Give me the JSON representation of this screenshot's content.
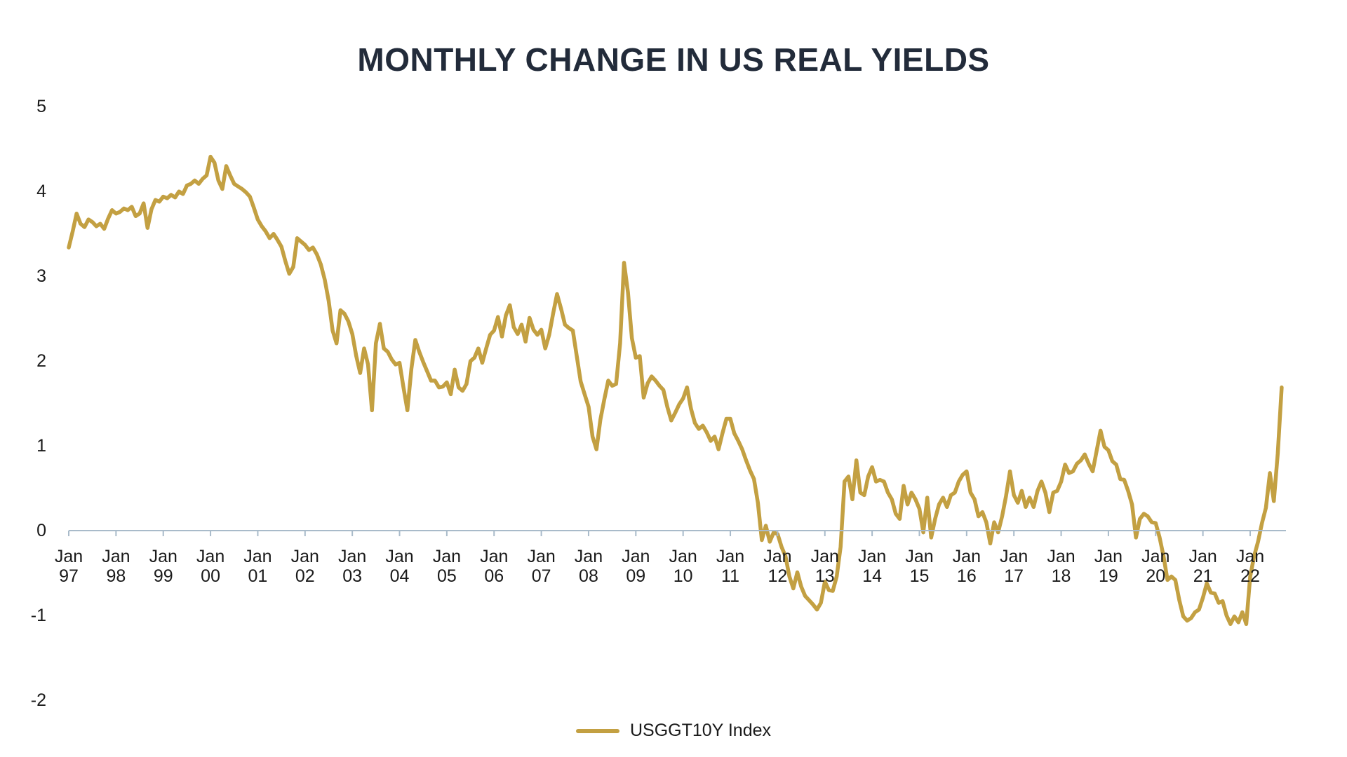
{
  "chart": {
    "title": "MONTHLY CHANGE IN US REAL YIELDS",
    "legend": {
      "series_label": "USGGT10Y Index"
    }
  },
  "colors": {
    "series": "#C3A042",
    "axis": "#A9BBCA",
    "title": "#222B3A",
    "text": "#1A1A1A"
  },
  "chart_data": {
    "type": "line",
    "title": "MONTHLY CHANGE IN US REAL YIELDS",
    "series_name": "USGGT10Y Index",
    "frequency": "monthly",
    "x_start": "1997-01",
    "x_end": "2022-09",
    "x_tick_month_label": "Jan",
    "x_tick_years": [
      "97",
      "98",
      "99",
      "00",
      "01",
      "02",
      "03",
      "04",
      "05",
      "06",
      "07",
      "08",
      "09",
      "10",
      "11",
      "12",
      "13",
      "14",
      "15",
      "16",
      "17",
      "18",
      "19",
      "20",
      "21",
      "22"
    ],
    "y_ticks": [
      5,
      4,
      3,
      2,
      1,
      0,
      -1,
      -2
    ],
    "ylim": [
      -2,
      5
    ],
    "grid": "zero-line-only",
    "legend_position": "bottom-center",
    "values": [
      3.33,
      3.52,
      3.73,
      3.61,
      3.57,
      3.66,
      3.63,
      3.58,
      3.61,
      3.55,
      3.67,
      3.77,
      3.73,
      3.75,
      3.79,
      3.77,
      3.81,
      3.7,
      3.73,
      3.85,
      3.56,
      3.78,
      3.89,
      3.87,
      3.93,
      3.91,
      3.95,
      3.92,
      3.99,
      3.96,
      4.06,
      4.08,
      4.12,
      4.08,
      4.14,
      4.18,
      4.4,
      4.33,
      4.12,
      4.02,
      4.29,
      4.18,
      4.08,
      4.05,
      4.02,
      3.98,
      3.93,
      3.8,
      3.66,
      3.58,
      3.52,
      3.44,
      3.49,
      3.42,
      3.34,
      3.17,
      3.02,
      3.1,
      3.44,
      3.4,
      3.36,
      3.3,
      3.33,
      3.25,
      3.13,
      2.95,
      2.7,
      2.35,
      2.2,
      2.59,
      2.55,
      2.46,
      2.31,
      2.05,
      1.85,
      2.14,
      1.95,
      1.41,
      2.2,
      2.43,
      2.14,
      2.1,
      2.01,
      1.95,
      1.97,
      1.68,
      1.41,
      1.9,
      2.24,
      2.1,
      1.98,
      1.87,
      1.76,
      1.76,
      1.68,
      1.69,
      1.74,
      1.6,
      1.89,
      1.68,
      1.64,
      1.72,
      1.99,
      2.03,
      2.14,
      1.97,
      2.14,
      2.3,
      2.35,
      2.51,
      2.28,
      2.53,
      2.65,
      2.39,
      2.31,
      2.42,
      2.22,
      2.5,
      2.36,
      2.3,
      2.36,
      2.14,
      2.3,
      2.55,
      2.78,
      2.61,
      2.42,
      2.38,
      2.35,
      2.05,
      1.75,
      1.6,
      1.45,
      1.1,
      0.95,
      1.3,
      1.54,
      1.76,
      1.7,
      1.72,
      2.2,
      3.15,
      2.8,
      2.26,
      2.03,
      2.05,
      1.56,
      1.73,
      1.81,
      1.76,
      1.7,
      1.65,
      1.45,
      1.29,
      1.38,
      1.48,
      1.55,
      1.68,
      1.43,
      1.26,
      1.19,
      1.23,
      1.15,
      1.05,
      1.1,
      0.95,
      1.14,
      1.31,
      1.31,
      1.14,
      1.05,
      0.95,
      0.82,
      0.7,
      0.6,
      0.32,
      -0.12,
      0.05,
      -0.14,
      -0.03,
      -0.05,
      -0.2,
      -0.31,
      -0.55,
      -0.69,
      -0.5,
      -0.67,
      -0.78,
      -0.83,
      -0.88,
      -0.94,
      -0.86,
      -0.61,
      -0.71,
      -0.72,
      -0.55,
      -0.2,
      0.57,
      0.63,
      0.36,
      0.82,
      0.44,
      0.41,
      0.63,
      0.74,
      0.57,
      0.59,
      0.57,
      0.44,
      0.36,
      0.19,
      0.13,
      0.52,
      0.3,
      0.44,
      0.36,
      0.25,
      -0.03,
      0.38,
      -0.09,
      0.13,
      0.3,
      0.38,
      0.27,
      0.41,
      0.44,
      0.57,
      0.65,
      0.69,
      0.44,
      0.36,
      0.16,
      0.21,
      0.09,
      -0.16,
      0.09,
      -0.03,
      0.16,
      0.4,
      0.69,
      0.41,
      0.32,
      0.46,
      0.27,
      0.38,
      0.27,
      0.46,
      0.57,
      0.44,
      0.21,
      0.44,
      0.46,
      0.57,
      0.77,
      0.67,
      0.69,
      0.78,
      0.82,
      0.89,
      0.78,
      0.69,
      0.93,
      1.17,
      0.98,
      0.94,
      0.81,
      0.77,
      0.6,
      0.59,
      0.46,
      0.3,
      -0.09,
      0.13,
      0.19,
      0.16,
      0.09,
      0.08,
      -0.09,
      -0.31,
      -0.59,
      -0.55,
      -0.59,
      -0.83,
      -1.02,
      -1.07,
      -1.04,
      -0.97,
      -0.94,
      -0.8,
      -0.63,
      -0.74,
      -0.75,
      -0.86,
      -0.84,
      -1.01,
      -1.11,
      -1.02,
      -1.09,
      -0.97,
      -1.11,
      -0.55,
      -0.31,
      -0.14,
      0.08,
      0.26,
      0.67,
      0.34,
      0.9,
      1.68
    ]
  }
}
